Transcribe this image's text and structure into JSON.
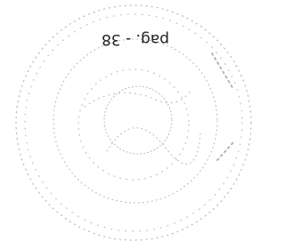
{
  "stamp": {
    "text": "pag. - 38"
  }
}
